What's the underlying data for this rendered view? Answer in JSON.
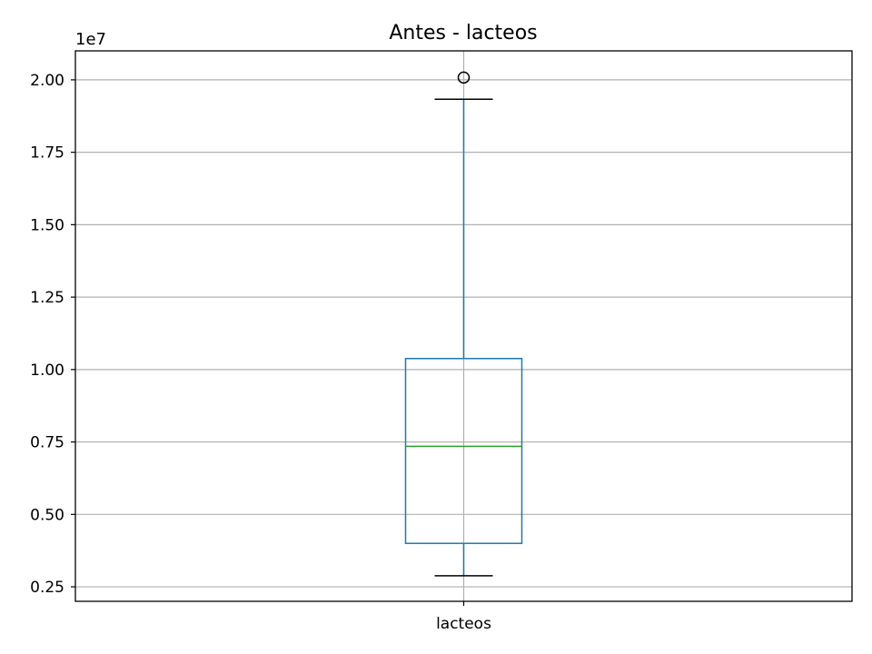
{
  "chart_data": {
    "type": "box",
    "title": "Antes - lacteos",
    "xlabel": "",
    "ylabel": "",
    "y_offset_label": "1e7",
    "categories": [
      "lacteos"
    ],
    "ylim": [
      2000000,
      21000000
    ],
    "yticks": [
      2500000,
      5000000,
      7500000,
      10000000,
      12500000,
      15000000,
      17500000,
      20000000
    ],
    "ytick_labels": [
      "0.25",
      "0.50",
      "0.75",
      "1.00",
      "1.25",
      "1.50",
      "1.75",
      "2.00"
    ],
    "grid": true,
    "boxes": [
      {
        "whisker_low": 2880000,
        "q1": 4000000,
        "median": 7350000,
        "q3": 10380000,
        "whisker_high": 19330000,
        "outliers": [
          20080000
        ]
      }
    ],
    "colors": {
      "box": "#1f77b4",
      "whisker": "#1f77b4",
      "cap": "#000000",
      "median": "#2ca02c",
      "grid": "#b0b0b0",
      "axes": "#000000"
    }
  }
}
